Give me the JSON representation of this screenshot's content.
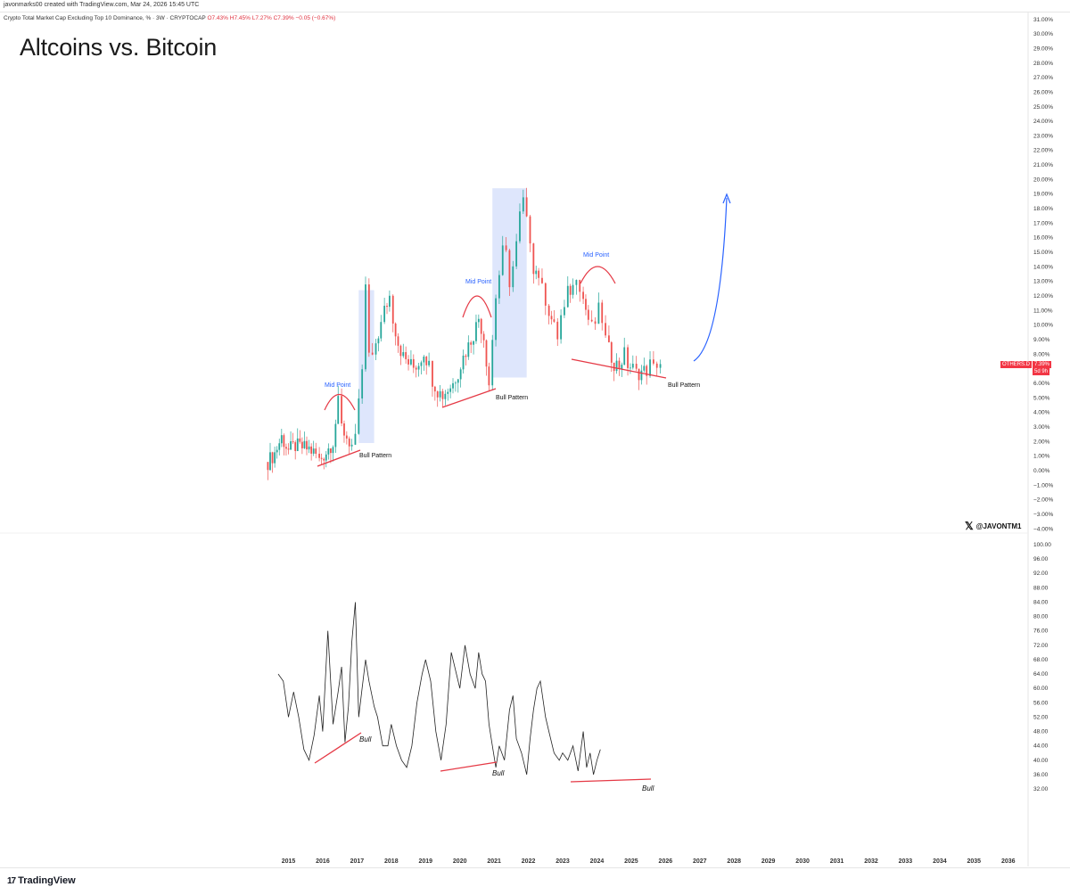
{
  "header": {
    "credit": "javonmarks00 created with TradingView.com, Mar 24, 2026 15:45 UTC",
    "symbol": "Crypto Total Market Cap Excluding Top 10 Dominance, % · 3W · CRYPTOCAP",
    "open": "O7.43%",
    "high": "H7.45%",
    "low": "L7.27%",
    "close": "C7.39%",
    "change": "−0.05 (−0.67%)"
  },
  "title": "Altcoins vs. Bitcoin",
  "watermark": "@JAVONTM1",
  "brand": "TradingView",
  "price_tag": {
    "symbol": "OTHERS.D",
    "value": "7.39%",
    "countdown": "5d 9h"
  },
  "annotations": {
    "mid_point": "Mid Point",
    "bull_pattern": "Bull Pattern",
    "bull": "Bull"
  },
  "colors": {
    "up": "#26a69a",
    "down": "#ef5350",
    "annotation_red": "#e53945",
    "annotation_blue": "#2962ff",
    "highlight": "#d6e0fb"
  },
  "chart_data": [
    {
      "type": "candlestick",
      "title": "Crypto Total Market Cap Excluding Top 10 Dominance, %",
      "y_ticks": [
        "31.00%",
        "30.00%",
        "29.00%",
        "28.00%",
        "27.00%",
        "26.00%",
        "25.00%",
        "24.00%",
        "23.00%",
        "22.00%",
        "21.00%",
        "20.00%",
        "19.00%",
        "18.00%",
        "17.00%",
        "16.00%",
        "15.00%",
        "14.00%",
        "13.00%",
        "12.00%",
        "11.00%",
        "10.00%",
        "9.00%",
        "8.00%",
        "7.00%",
        "6.00%",
        "5.00%",
        "4.00%",
        "3.00%",
        "2.00%",
        "1.00%",
        "0.00%",
        "−1.00%",
        "−2.00%",
        "−3.00%",
        "−4.00%"
      ],
      "ylim": [
        -4,
        31
      ],
      "x_ticks": [
        "2015",
        "2016",
        "2017",
        "2018",
        "2019",
        "2020",
        "2021",
        "2022",
        "2023",
        "2024",
        "2025",
        "2026",
        "2027",
        "2028",
        "2029",
        "2030",
        "2031",
        "2032",
        "2033",
        "2034",
        "2035",
        "2036"
      ],
      "x_range": [
        2014.4,
        2026.2
      ],
      "close_series": [
        [
          2014.4,
          0.6
        ],
        [
          2014.6,
          1.2
        ],
        [
          2014.8,
          2.3
        ],
        [
          2015.0,
          1.4
        ],
        [
          2015.2,
          1.7
        ],
        [
          2015.4,
          1.6
        ],
        [
          2015.6,
          1.5
        ],
        [
          2015.8,
          1.1
        ],
        [
          2015.9,
          0.7
        ],
        [
          2016.1,
          1.3
        ],
        [
          2016.3,
          2.0
        ],
        [
          2016.45,
          4.6
        ],
        [
          2016.55,
          3.0
        ],
        [
          2016.7,
          2.3
        ],
        [
          2016.85,
          1.7
        ],
        [
          2016.95,
          2.0
        ],
        [
          2017.05,
          4.5
        ],
        [
          2017.15,
          7.0
        ],
        [
          2017.25,
          12.5
        ],
        [
          2017.35,
          8.0
        ],
        [
          2017.45,
          7.5
        ],
        [
          2017.55,
          8.8
        ],
        [
          2017.7,
          10.0
        ],
        [
          2017.8,
          11.0
        ],
        [
          2017.95,
          12.0
        ],
        [
          2018.05,
          10.5
        ],
        [
          2018.2,
          8.8
        ],
        [
          2018.35,
          7.8
        ],
        [
          2018.5,
          7.4
        ],
        [
          2018.65,
          7.1
        ],
        [
          2018.8,
          7.4
        ],
        [
          2018.95,
          8.2
        ],
        [
          2019.1,
          7.2
        ],
        [
          2019.2,
          6.3
        ],
        [
          2019.35,
          5.5
        ],
        [
          2019.5,
          5.2
        ],
        [
          2019.65,
          5.6
        ],
        [
          2019.8,
          6.0
        ],
        [
          2019.95,
          6.8
        ],
        [
          2020.1,
          7.8
        ],
        [
          2020.25,
          8.6
        ],
        [
          2020.4,
          9.4
        ],
        [
          2020.55,
          10.5
        ],
        [
          2020.7,
          9.2
        ],
        [
          2020.85,
          6.0
        ],
        [
          2020.95,
          9.0
        ],
        [
          2021.05,
          12.0
        ],
        [
          2021.15,
          13.5
        ],
        [
          2021.25,
          15.0
        ],
        [
          2021.35,
          14.8
        ],
        [
          2021.45,
          13.0
        ],
        [
          2021.55,
          14.0
        ],
        [
          2021.65,
          15.5
        ],
        [
          2021.75,
          17.5
        ],
        [
          2021.85,
          18.5
        ],
        [
          2021.95,
          17.0
        ],
        [
          2022.05,
          16.0
        ],
        [
          2022.15,
          14.0
        ],
        [
          2022.3,
          13.5
        ],
        [
          2022.4,
          12.4
        ],
        [
          2022.5,
          11.8
        ],
        [
          2022.6,
          11.0
        ],
        [
          2022.75,
          9.8
        ],
        [
          2022.85,
          9.2
        ],
        [
          2022.95,
          10.6
        ],
        [
          2023.05,
          11.0
        ],
        [
          2023.15,
          12.2
        ],
        [
          2023.3,
          12.6
        ],
        [
          2023.4,
          13.6
        ],
        [
          2023.5,
          12.8
        ],
        [
          2023.6,
          11.8
        ],
        [
          2023.75,
          10.4
        ],
        [
          2023.85,
          9.8
        ],
        [
          2023.95,
          10.2
        ],
        [
          2024.05,
          11.0
        ],
        [
          2024.15,
          10.4
        ],
        [
          2024.25,
          9.0
        ],
        [
          2024.35,
          8.3
        ],
        [
          2024.5,
          7.4
        ],
        [
          2024.65,
          7.2
        ],
        [
          2024.8,
          8.0
        ],
        [
          2024.9,
          7.3
        ],
        [
          2025.05,
          7.0
        ],
        [
          2025.15,
          6.7
        ],
        [
          2025.3,
          6.8
        ],
        [
          2025.45,
          6.9
        ],
        [
          2025.55,
          7.3
        ],
        [
          2025.65,
          7.0
        ],
        [
          2025.75,
          7.4
        ],
        [
          2025.85,
          7.39
        ]
      ],
      "highlight_ranges": [
        [
          2017.05,
          2017.5
        ],
        [
          2020.95,
          2021.95
        ]
      ],
      "last_value": 7.39
    },
    {
      "type": "line",
      "title": "",
      "y_ticks": [
        "100.00",
        "96.00",
        "92.00",
        "88.00",
        "84.00",
        "80.00",
        "76.00",
        "72.00",
        "68.00",
        "64.00",
        "60.00",
        "56.00",
        "52.00",
        "48.00",
        "44.00",
        "40.00",
        "36.00",
        "32.00"
      ],
      "ylim": [
        32,
        100
      ],
      "series": [
        {
          "values": [
            [
              2014.7,
              64
            ],
            [
              2014.85,
              62
            ],
            [
              2015.0,
              52
            ],
            [
              2015.15,
              59
            ],
            [
              2015.3,
              52
            ],
            [
              2015.45,
              43
            ],
            [
              2015.6,
              40
            ],
            [
              2015.75,
              47
            ],
            [
              2015.9,
              58
            ],
            [
              2016.0,
              48
            ],
            [
              2016.15,
              76
            ],
            [
              2016.3,
              50
            ],
            [
              2016.45,
              59
            ],
            [
              2016.55,
              66
            ],
            [
              2016.65,
              45
            ],
            [
              2016.75,
              55
            ],
            [
              2016.85,
              73
            ],
            [
              2016.95,
              84
            ],
            [
              2017.05,
              52
            ],
            [
              2017.15,
              60
            ],
            [
              2017.25,
              68
            ],
            [
              2017.35,
              62
            ],
            [
              2017.5,
              55
            ],
            [
              2017.6,
              52
            ],
            [
              2017.75,
              44
            ],
            [
              2017.9,
              44
            ],
            [
              2018.0,
              50
            ],
            [
              2018.15,
              44
            ],
            [
              2018.3,
              40
            ],
            [
              2018.45,
              38
            ],
            [
              2018.6,
              44
            ],
            [
              2018.75,
              56
            ],
            [
              2018.9,
              64
            ],
            [
              2019.0,
              68
            ],
            [
              2019.15,
              62
            ],
            [
              2019.3,
              48
            ],
            [
              2019.45,
              40
            ],
            [
              2019.6,
              50
            ],
            [
              2019.75,
              70
            ],
            [
              2019.9,
              64
            ],
            [
              2020.0,
              60
            ],
            [
              2020.15,
              72
            ],
            [
              2020.3,
              64
            ],
            [
              2020.45,
              60
            ],
            [
              2020.55,
              70
            ],
            [
              2020.65,
              64
            ],
            [
              2020.75,
              62
            ],
            [
              2020.85,
              50
            ],
            [
              2020.95,
              44
            ],
            [
              2021.05,
              38
            ],
            [
              2021.15,
              44
            ],
            [
              2021.3,
              40
            ],
            [
              2021.45,
              54
            ],
            [
              2021.55,
              58
            ],
            [
              2021.65,
              46
            ],
            [
              2021.8,
              42
            ],
            [
              2021.95,
              36
            ],
            [
              2022.05,
              46
            ],
            [
              2022.15,
              54
            ],
            [
              2022.25,
              60
            ],
            [
              2022.35,
              62
            ],
            [
              2022.5,
              52
            ],
            [
              2022.6,
              48
            ],
            [
              2022.75,
              42
            ],
            [
              2022.9,
              40
            ],
            [
              2023.0,
              42
            ],
            [
              2023.15,
              40
            ],
            [
              2023.3,
              44
            ],
            [
              2023.45,
              37
            ],
            [
              2023.6,
              48
            ],
            [
              2023.7,
              38
            ],
            [
              2023.8,
              42
            ],
            [
              2023.9,
              36
            ],
            [
              2024.0,
              40
            ],
            [
              2024.1,
              43
            ]
          ]
        }
      ]
    }
  ]
}
